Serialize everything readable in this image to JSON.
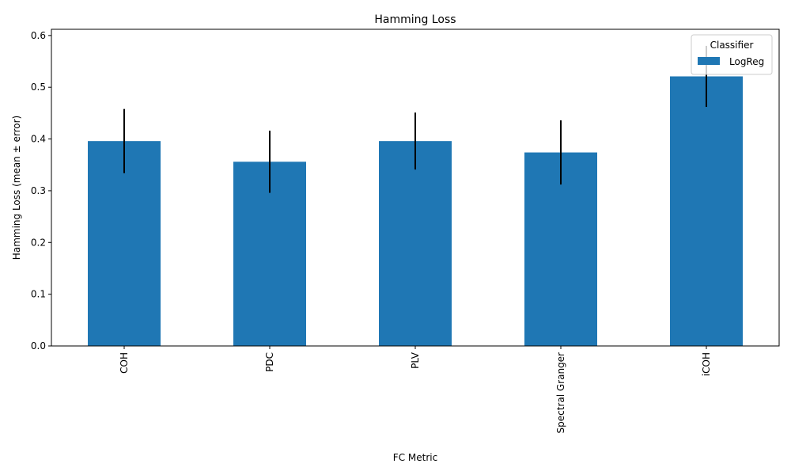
{
  "chart_data": {
    "type": "bar",
    "title": "Hamming Loss",
    "xlabel": "FC Metric",
    "ylabel": "Hamming Loss (mean ± error)",
    "categories": [
      "COH",
      "PDC",
      "PLV",
      "Spectral Granger",
      "iCOH"
    ],
    "series": [
      {
        "name": "LogReg",
        "color": "#1f77b4",
        "values": [
          0.396,
          0.356,
          0.396,
          0.374,
          0.521
        ],
        "errors": [
          0.062,
          0.06,
          0.055,
          0.062,
          0.059
        ]
      }
    ],
    "ylim": [
      0,
      0.612
    ],
    "yticks": [
      0.0,
      0.1,
      0.2,
      0.3,
      0.4,
      0.5,
      0.6
    ],
    "ytick_labels": [
      "0.0",
      "0.1",
      "0.2",
      "0.3",
      "0.4",
      "0.5",
      "0.6"
    ],
    "grid": false,
    "legend": {
      "title": "Classifier",
      "placement": "top-right"
    }
  }
}
